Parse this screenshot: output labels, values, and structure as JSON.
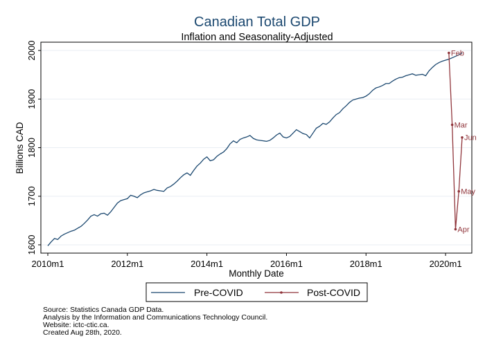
{
  "chart_data": {
    "type": "line",
    "title": "Canadian Total GDP",
    "subtitle": "Inflation and Seasonality-Adjusted",
    "xlabel": "Monthly Date",
    "ylabel": "Billions CAD",
    "xlim": [
      0,
      125
    ],
    "ylim": [
      1590,
      2010
    ],
    "xticks": [
      {
        "value": 0,
        "label": "2010m1"
      },
      {
        "value": 24,
        "label": "2012m1"
      },
      {
        "value": 48,
        "label": "2014m1"
      },
      {
        "value": 72,
        "label": "2016m1"
      },
      {
        "value": 96,
        "label": "2018m1"
      },
      {
        "value": 120,
        "label": "2020m1"
      }
    ],
    "yticks": [
      1600,
      1700,
      1800,
      1900,
      2000
    ],
    "series": [
      {
        "name": "Pre-COVID",
        "color": "#1a476f",
        "start_index": 0,
        "values": [
          1598,
          1606,
          1613,
          1611,
          1618,
          1622,
          1625,
          1628,
          1630,
          1634,
          1638,
          1644,
          1651,
          1659,
          1662,
          1659,
          1664,
          1665,
          1661,
          1668,
          1677,
          1686,
          1691,
          1693,
          1695,
          1702,
          1700,
          1697,
          1703,
          1707,
          1709,
          1711,
          1714,
          1712,
          1711,
          1710,
          1717,
          1720,
          1725,
          1731,
          1738,
          1744,
          1748,
          1743,
          1753,
          1762,
          1768,
          1776,
          1781,
          1773,
          1775,
          1782,
          1787,
          1791,
          1798,
          1808,
          1814,
          1810,
          1817,
          1820,
          1822,
          1825,
          1819,
          1816,
          1815,
          1814,
          1813,
          1815,
          1820,
          1826,
          1830,
          1822,
          1820,
          1823,
          1830,
          1837,
          1833,
          1829,
          1827,
          1820,
          1830,
          1840,
          1844,
          1850,
          1848,
          1853,
          1861,
          1868,
          1872,
          1880,
          1886,
          1893,
          1898,
          1900,
          1902,
          1903,
          1906,
          1911,
          1918,
          1923,
          1925,
          1928,
          1932,
          1932,
          1937,
          1941,
          1944,
          1945,
          1948,
          1950,
          1952,
          1949,
          1950,
          1951,
          1948,
          1958,
          1965,
          1971,
          1975,
          1978,
          1980,
          1982,
          1985,
          1988,
          1991,
          1995
        ]
      },
      {
        "name": "Post-COVID",
        "color": "#90353b",
        "start_index": 121,
        "values": [
          1995,
          1847,
          1632,
          1710,
          1821
        ],
        "labels": [
          "Feb",
          "Mar",
          "Apr",
          "May",
          "Jun"
        ]
      }
    ],
    "legend": {
      "position": "bottom",
      "entries": [
        "Pre-COVID",
        "Post-COVID"
      ]
    }
  },
  "footnotes": [
    "Source: Statistics Canada GDP Data.",
    "Analysis by the Information and Communications Technology Council.",
    "Website: ictc-ctic.ca.",
    "Created Aug 28th, 2020."
  ]
}
